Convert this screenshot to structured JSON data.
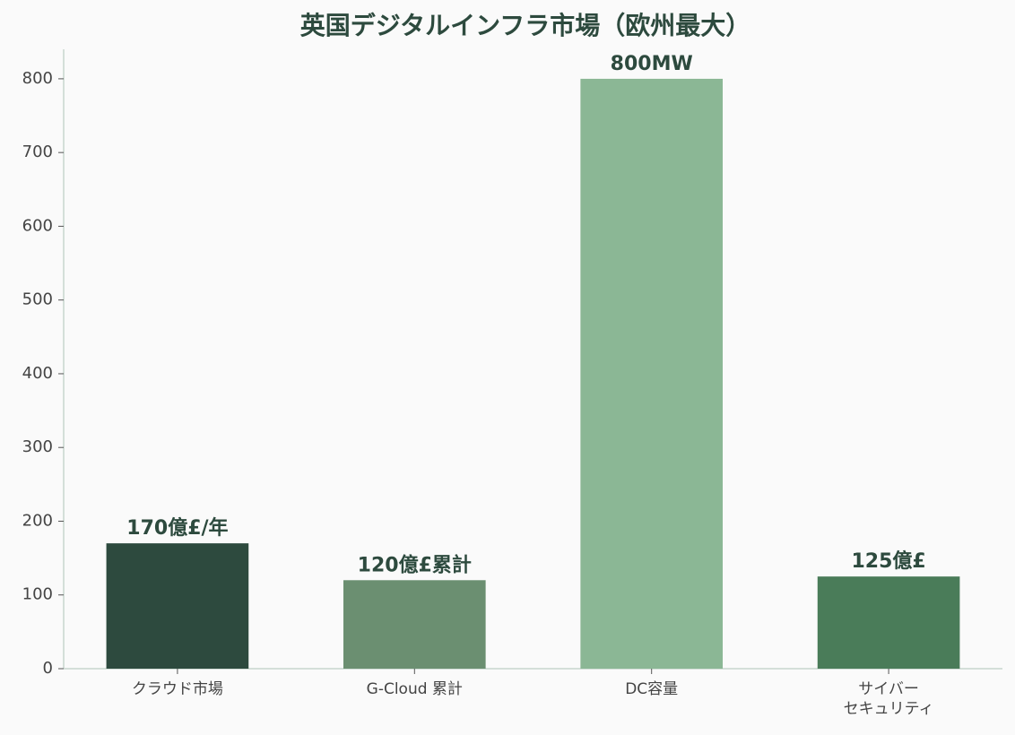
{
  "chart_data": {
    "type": "bar",
    "title": "英国デジタルインフラ市場（欧州最大）",
    "categories": [
      "クラウド市場",
      "G-Cloud 累計",
      "DC容量",
      "サイバー\nセキュリティ"
    ],
    "values": [
      170,
      120,
      800,
      125
    ],
    "value_labels": [
      "170億£/年",
      "120億£累計",
      "800MW",
      "125億£"
    ],
    "colors": [
      "#2d4a3e",
      "#6b8f71",
      "#8bb795",
      "#4a7c59"
    ],
    "ylim": [
      0,
      840
    ],
    "yticks": [
      0,
      100,
      200,
      300,
      400,
      500,
      600,
      700,
      800
    ],
    "grid": false
  }
}
